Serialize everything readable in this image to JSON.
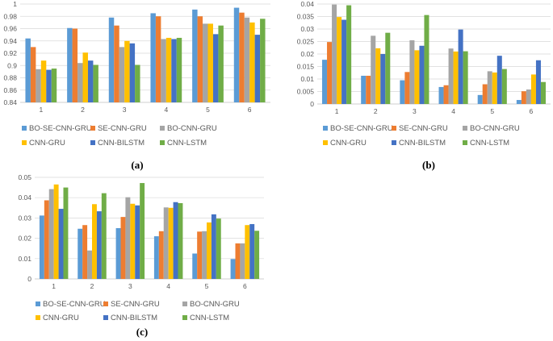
{
  "colors": {
    "series": [
      "#5B9BD5",
      "#ED7D31",
      "#A5A5A5",
      "#FFC000",
      "#4472C4",
      "#70AD47"
    ]
  },
  "chart_data": [
    {
      "type": "bar",
      "panel_label": "(a)",
      "categories": [
        "1",
        "2",
        "3",
        "4",
        "5",
        "6"
      ],
      "ylim": [
        0.84,
        1.0
      ],
      "ytick_step": 0.02,
      "ytick_decimals": 2,
      "ytick_labels": [
        "0.84",
        "0.86",
        "0.88",
        "0.9",
        "0.92",
        "0.94",
        "0.96",
        "0.98",
        "1"
      ],
      "grid": true,
      "legend_position": "bottom",
      "series": [
        {
          "name": "BO-SE-CNN-GRU",
          "values": [
            0.944,
            0.961,
            0.978,
            0.985,
            0.991,
            0.994
          ]
        },
        {
          "name": "SE-CNN-GRU",
          "values": [
            0.93,
            0.96,
            0.965,
            0.98,
            0.98,
            0.986
          ]
        },
        {
          "name": "BO-CNN-GRU",
          "values": [
            0.894,
            0.904,
            0.93,
            0.943,
            0.968,
            0.978
          ]
        },
        {
          "name": "CNN-GRU",
          "values": [
            0.908,
            0.921,
            0.94,
            0.945,
            0.968,
            0.97
          ]
        },
        {
          "name": "CNN-BILSTM",
          "values": [
            0.893,
            0.908,
            0.936,
            0.943,
            0.951,
            0.95
          ]
        },
        {
          "name": "CNN-LSTM",
          "values": [
            0.895,
            0.901,
            0.901,
            0.945,
            0.965,
            0.976
          ]
        }
      ]
    },
    {
      "type": "bar",
      "panel_label": "(b)",
      "categories": [
        "1",
        "2",
        "3",
        "4",
        "5",
        "6"
      ],
      "ylim": [
        0,
        0.04
      ],
      "ytick_step": 0.005,
      "ytick_decimals": 3,
      "ytick_labels": [
        "0",
        "0.005",
        "0.01",
        "0.015",
        "0.02",
        "0.025",
        "0.03",
        "0.035",
        "0.04"
      ],
      "grid": true,
      "legend_position": "bottom",
      "series": [
        {
          "name": "BO-SE-CNN-GRU",
          "values": [
            0.0177,
            0.0113,
            0.0095,
            0.0068,
            0.0036,
            0.0016
          ]
        },
        {
          "name": "SE-CNN-GRU",
          "values": [
            0.0248,
            0.0113,
            0.0128,
            0.0075,
            0.0079,
            0.0051
          ]
        },
        {
          "name": "BO-CNN-GRU",
          "values": [
            0.0398,
            0.0273,
            0.0255,
            0.0222,
            0.0131,
            0.0058
          ]
        },
        {
          "name": "CNN-GRU",
          "values": [
            0.0348,
            0.0223,
            0.0215,
            0.021,
            0.0126,
            0.0118
          ]
        },
        {
          "name": "CNN-BILSTM",
          "values": [
            0.0337,
            0.02,
            0.0233,
            0.0298,
            0.0193,
            0.0175
          ]
        },
        {
          "name": "CNN-LSTM",
          "values": [
            0.0395,
            0.0285,
            0.0356,
            0.0211,
            0.014,
            0.0088
          ]
        }
      ]
    },
    {
      "type": "bar",
      "panel_label": "(c)",
      "categories": [
        "1",
        "2",
        "3",
        "4",
        "5",
        "6"
      ],
      "ylim": [
        0,
        0.05
      ],
      "ytick_step": 0.01,
      "ytick_decimals": 2,
      "ytick_labels": [
        "0",
        "0.01",
        "0.02",
        "0.03",
        "0.04",
        "0.05"
      ],
      "grid": true,
      "legend_position": "bottom",
      "series": [
        {
          "name": "BO-SE-CNN-GRU",
          "values": [
            0.0312,
            0.0247,
            0.025,
            0.021,
            0.0125,
            0.0098
          ]
        },
        {
          "name": "SE-CNN-GRU",
          "values": [
            0.0387,
            0.0265,
            0.0305,
            0.0235,
            0.0233,
            0.0175
          ]
        },
        {
          "name": "BO-CNN-GRU",
          "values": [
            0.0442,
            0.014,
            0.0402,
            0.0352,
            0.0235,
            0.0175
          ]
        },
        {
          "name": "CNN-GRU",
          "values": [
            0.0465,
            0.0368,
            0.037,
            0.035,
            0.0278,
            0.0265
          ]
        },
        {
          "name": "CNN-BILSTM",
          "values": [
            0.0345,
            0.0333,
            0.0362,
            0.0378,
            0.0318,
            0.027
          ]
        },
        {
          "name": "CNN-LSTM",
          "values": [
            0.045,
            0.0422,
            0.0472,
            0.0373,
            0.0297,
            0.0237
          ]
        }
      ]
    }
  ]
}
